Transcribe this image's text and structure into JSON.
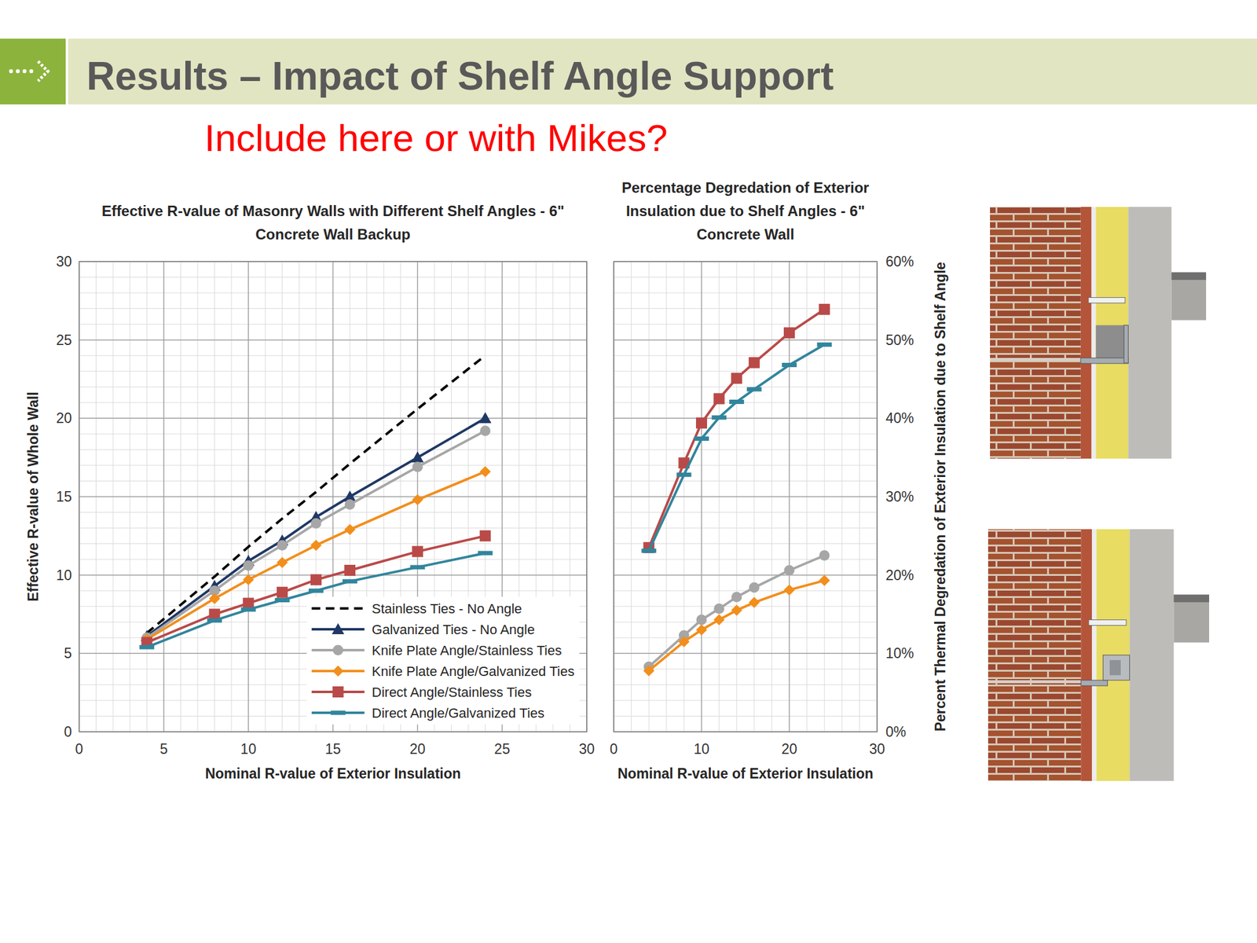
{
  "slide": {
    "title": "Results – Impact of Shelf Angle Support",
    "note": "Include here or with Mikes?"
  },
  "chart_data": [
    {
      "type": "line",
      "title": "Effective R-value of Masonry Walls with Different Shelf Angles - 6\" Concrete Wall Backup",
      "x_label": "Nominal R-value of Exterior Insulation",
      "y_label": "Effective R-value of Whole Wall",
      "x": [
        4,
        8,
        10,
        12,
        14,
        16,
        20,
        24
      ],
      "xlim": [
        0,
        30
      ],
      "xticks": [
        0,
        5,
        10,
        15,
        20,
        25,
        30
      ],
      "ylim": [
        0,
        30
      ],
      "yticks": [
        0,
        5,
        10,
        15,
        20,
        25,
        30
      ],
      "grid": true,
      "legend": "lower right",
      "series": [
        {
          "name": "Stainless Ties - No Angle",
          "color": "#000000",
          "line_style": "dashed",
          "marker": "none",
          "values": [
            6.3,
            9.9,
            11.8,
            13.6,
            15.3,
            17.1,
            20.6,
            24.0
          ]
        },
        {
          "name": "Galvanized Ties - No Angle",
          "color": "#1f3864",
          "line_style": "solid",
          "marker": "triangle",
          "values": [
            6.1,
            9.3,
            10.9,
            12.2,
            13.7,
            15.0,
            17.5,
            20.0
          ]
        },
        {
          "name": "Knife Plate Angle/Stainless Ties",
          "color": "#a6a6a6",
          "line_style": "solid",
          "marker": "circle",
          "values": [
            6.0,
            9.0,
            10.6,
            11.9,
            13.3,
            14.5,
            16.9,
            19.2
          ]
        },
        {
          "name": "Knife Plate Angle/Galvanized Ties",
          "color": "#f28e1c",
          "line_style": "solid",
          "marker": "diamond",
          "values": [
            5.9,
            8.5,
            9.7,
            10.8,
            11.9,
            12.9,
            14.8,
            16.6
          ]
        },
        {
          "name": "Direct Angle/Stainless Ties",
          "color": "#b94a48",
          "line_style": "solid",
          "marker": "square",
          "values": [
            5.7,
            7.5,
            8.2,
            8.9,
            9.7,
            10.3,
            11.5,
            12.5
          ]
        },
        {
          "name": "Direct Angle/Galvanized Ties",
          "color": "#31859c",
          "line_style": "solid",
          "marker": "dash",
          "values": [
            5.4,
            7.1,
            7.8,
            8.4,
            9.0,
            9.6,
            10.5,
            11.4
          ]
        }
      ]
    },
    {
      "type": "line",
      "title": "Percentage Degredation of Exterior Insulation due to Shelf Angles - 6\" Concrete Wall",
      "x_label": "Nominal R-value of Exterior Insulation",
      "y_label": "Percent Thermal Degredation of Exterior Insulation due to Shelf Angle",
      "x": [
        4,
        8,
        10,
        12,
        14,
        16,
        20,
        24
      ],
      "xlim": [
        0,
        30
      ],
      "xticks": [
        0,
        10,
        20,
        30
      ],
      "ylim": [
        0,
        60
      ],
      "yticks": [
        {
          "value": 0,
          "label": "0%"
        },
        {
          "value": 10,
          "label": "10%"
        },
        {
          "value": 20,
          "label": "20%"
        },
        {
          "value": 30,
          "label": "30%"
        },
        {
          "value": 40,
          "label": "40%"
        },
        {
          "value": 50,
          "label": "50%"
        },
        {
          "value": 60,
          "label": "60%"
        }
      ],
      "grid": true,
      "series": [
        {
          "color": "#b94a48",
          "line_style": "solid",
          "marker": "square",
          "values": [
            23.5,
            34.3,
            39.4,
            42.5,
            45.1,
            47.1,
            50.9,
            53.9
          ]
        },
        {
          "color": "#31859c",
          "line_style": "solid",
          "marker": "dash",
          "values": [
            23.1,
            32.8,
            37.4,
            40.1,
            42.1,
            43.7,
            46.8,
            49.4
          ]
        },
        {
          "color": "#a6a6a6",
          "line_style": "solid",
          "marker": "circle",
          "values": [
            8.3,
            12.3,
            14.3,
            15.7,
            17.2,
            18.4,
            20.6,
            22.5
          ]
        },
        {
          "color": "#f28e1c",
          "line_style": "solid",
          "marker": "diamond",
          "values": [
            7.8,
            11.5,
            13.0,
            14.3,
            15.5,
            16.5,
            18.1,
            19.3
          ]
        }
      ]
    }
  ]
}
